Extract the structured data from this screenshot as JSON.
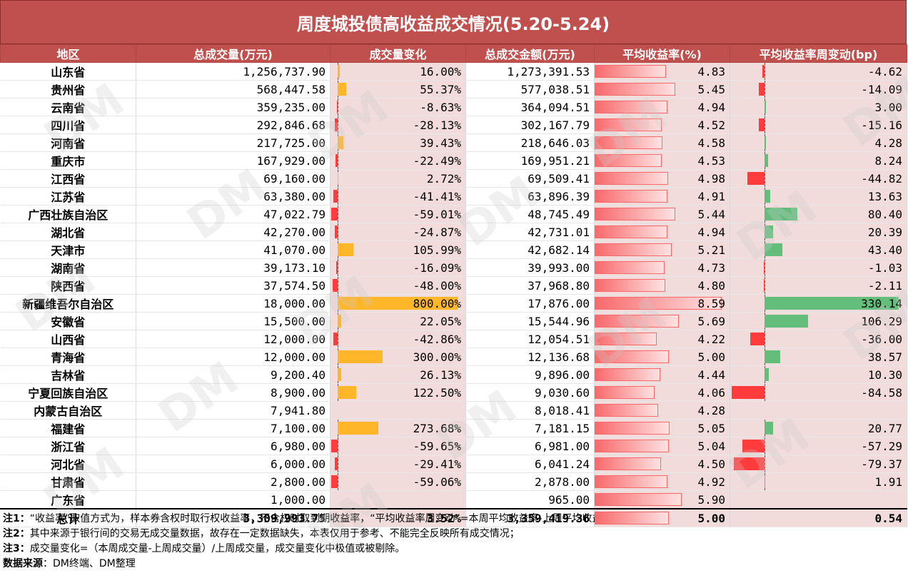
{
  "title": "周度城投债高收益成交情况(5.20-5.24)",
  "columns": [
    "地区",
    "总成交量(万元)",
    "成交量变化",
    "总成交金额(万元)",
    "平均收益率(%)",
    "平均收益率周变动(bp)"
  ],
  "rows": [
    {
      "region": "山东省",
      "vol": "1,256,737.90",
      "chg": "16.00%",
      "chg_v": 16.0,
      "amt": "1,273,391.53",
      "yld": "4.83",
      "yld_v": 4.83,
      "bp": "-4.62",
      "bp_v": -4.62
    },
    {
      "region": "贵州省",
      "vol": "568,447.58",
      "chg": "55.37%",
      "chg_v": 55.37,
      "amt": "577,038.51",
      "yld": "5.45",
      "yld_v": 5.45,
      "bp": "-14.09",
      "bp_v": -14.09
    },
    {
      "region": "云南省",
      "vol": "359,235.00",
      "chg": "-8.63%",
      "chg_v": -8.63,
      "amt": "364,094.51",
      "yld": "4.94",
      "yld_v": 4.94,
      "bp": "3.00",
      "bp_v": 3.0
    },
    {
      "region": "四川省",
      "vol": "292,846.68",
      "chg": "-28.13%",
      "chg_v": -28.13,
      "amt": "302,167.79",
      "yld": "4.52",
      "yld_v": 4.52,
      "bp": "-15.16",
      "bp_v": -15.16
    },
    {
      "region": "河南省",
      "vol": "217,725.00",
      "chg": "39.43%",
      "chg_v": 39.43,
      "amt": "218,646.03",
      "yld": "4.58",
      "yld_v": 4.58,
      "bp": "4.28",
      "bp_v": 4.28
    },
    {
      "region": "重庆市",
      "vol": "167,929.00",
      "chg": "-22.49%",
      "chg_v": -22.49,
      "amt": "169,951.21",
      "yld": "4.53",
      "yld_v": 4.53,
      "bp": "8.24",
      "bp_v": 8.24
    },
    {
      "region": "江西省",
      "vol": "69,160.00",
      "chg": "2.72%",
      "chg_v": 2.72,
      "amt": "69,509.41",
      "yld": "4.98",
      "yld_v": 4.98,
      "bp": "-44.82",
      "bp_v": -44.82
    },
    {
      "region": "江苏省",
      "vol": "63,380.00",
      "chg": "-41.41%",
      "chg_v": -41.41,
      "amt": "63,896.39",
      "yld": "4.91",
      "yld_v": 4.91,
      "bp": "13.63",
      "bp_v": 13.63
    },
    {
      "region": "广西壮族自治区",
      "vol": "47,022.79",
      "chg": "-59.01%",
      "chg_v": -59.01,
      "amt": "48,745.49",
      "yld": "5.44",
      "yld_v": 5.44,
      "bp": "80.40",
      "bp_v": 80.4
    },
    {
      "region": "湖北省",
      "vol": "42,270.00",
      "chg": "-24.87%",
      "chg_v": -24.87,
      "amt": "42,731.01",
      "yld": "4.94",
      "yld_v": 4.94,
      "bp": "20.39",
      "bp_v": 20.39
    },
    {
      "region": "天津市",
      "vol": "41,070.00",
      "chg": "105.99%",
      "chg_v": 105.99,
      "amt": "42,682.14",
      "yld": "5.21",
      "yld_v": 5.21,
      "bp": "43.40",
      "bp_v": 43.4
    },
    {
      "region": "湖南省",
      "vol": "39,173.10",
      "chg": "-16.09%",
      "chg_v": -16.09,
      "amt": "39,993.00",
      "yld": "4.73",
      "yld_v": 4.73,
      "bp": "-1.03",
      "bp_v": -1.03
    },
    {
      "region": "陕西省",
      "vol": "37,574.50",
      "chg": "-48.00%",
      "chg_v": -48.0,
      "amt": "37,968.80",
      "yld": "4.80",
      "yld_v": 4.8,
      "bp": "-2.11",
      "bp_v": -2.11
    },
    {
      "region": "新疆维吾尔自治区",
      "vol": "18,000.00",
      "chg": "800.00%",
      "chg_v": 800.0,
      "amt": "17,876.00",
      "yld": "8.59",
      "yld_v": 8.59,
      "bp": "330.14",
      "bp_v": 330.14
    },
    {
      "region": "安徽省",
      "vol": "15,500.00",
      "chg": "22.05%",
      "chg_v": 22.05,
      "amt": "15,544.96",
      "yld": "5.69",
      "yld_v": 5.69,
      "bp": "106.29",
      "bp_v": 106.29
    },
    {
      "region": "山西省",
      "vol": "12,000.00",
      "chg": "-42.86%",
      "chg_v": -42.86,
      "amt": "12,054.51",
      "yld": "4.22",
      "yld_v": 4.22,
      "bp": "-36.00",
      "bp_v": -36.0
    },
    {
      "region": "青海省",
      "vol": "12,000.00",
      "chg": "300.00%",
      "chg_v": 300.0,
      "amt": "12,136.68",
      "yld": "5.00",
      "yld_v": 5.0,
      "bp": "38.57",
      "bp_v": 38.57
    },
    {
      "region": "吉林省",
      "vol": "9,200.40",
      "chg": "26.13%",
      "chg_v": 26.13,
      "amt": "9,896.00",
      "yld": "4.44",
      "yld_v": 4.44,
      "bp": "10.30",
      "bp_v": 10.3
    },
    {
      "region": "宁夏回族自治区",
      "vol": "8,900.00",
      "chg": "122.50%",
      "chg_v": 122.5,
      "amt": "9,030.60",
      "yld": "4.06",
      "yld_v": 4.06,
      "bp": "-84.58",
      "bp_v": -84.58
    },
    {
      "region": "内蒙古自治区",
      "vol": "7,941.80",
      "chg": "",
      "chg_v": null,
      "amt": "8,018.41",
      "yld": "4.28",
      "yld_v": 4.28,
      "bp": "",
      "bp_v": null
    },
    {
      "region": "福建省",
      "vol": "7,100.00",
      "chg": "273.68%",
      "chg_v": 273.68,
      "amt": "7,181.15",
      "yld": "5.05",
      "yld_v": 5.05,
      "bp": "20.77",
      "bp_v": 20.77
    },
    {
      "region": "浙江省",
      "vol": "6,980.00",
      "chg": "-59.65%",
      "chg_v": -59.65,
      "amt": "6,981.00",
      "yld": "5.04",
      "yld_v": 5.04,
      "bp": "-57.29",
      "bp_v": -57.29
    },
    {
      "region": "河北省",
      "vol": "6,000.00",
      "chg": "-29.41%",
      "chg_v": -29.41,
      "amt": "6,041.24",
      "yld": "4.50",
      "yld_v": 4.5,
      "bp": "-79.37",
      "bp_v": -79.37
    },
    {
      "region": "甘肃省",
      "vol": "2,800.00",
      "chg": "-59.06%",
      "chg_v": -59.06,
      "amt": "2,878.00",
      "yld": "4.92",
      "yld_v": 4.92,
      "bp": "1.91",
      "bp_v": 1.91
    },
    {
      "region": "广东省",
      "vol": "1,000.00",
      "chg": "",
      "chg_v": null,
      "amt": "965.00",
      "yld": "5.90",
      "yld_v": 5.9,
      "bp": "",
      "bp_v": null
    }
  ],
  "total": {
    "region": "总计",
    "vol": "3,309,993.75",
    "chg": "3.52%",
    "amt": "3,359,419.36",
    "yld": "5.00",
    "bp": "0.54"
  },
  "notes": [
    {
      "label": "注1：",
      "text": "“收益率”取值方式为，样本券含权时取行权收益率，不含权时取到期收益率，“平均收益率周变动”=本周平均收益率-上周平均收益率；"
    },
    {
      "label": "注2：",
      "text": "其中来源于银行间的交易无成交量数据，故存在一定数据缺失，本表仅用于参考、不能完全反映所有成交情况；"
    },
    {
      "label": "注3：",
      "text": "成交量变化=（本周成交量-上周成交量）/上周成交量，成交量变化中极值或被剔除。"
    },
    {
      "label": "数据来源",
      "text": "：DM终端、DM整理"
    }
  ],
  "watermark": "DM",
  "colors": {
    "header": "#c0504d",
    "pos_change": "#ffb628",
    "neg": "#ff3b3b",
    "pos_bp": "#63be7b",
    "yield_bar": "#f8696b",
    "bar_cell_bg": "#f2dcdb"
  }
}
